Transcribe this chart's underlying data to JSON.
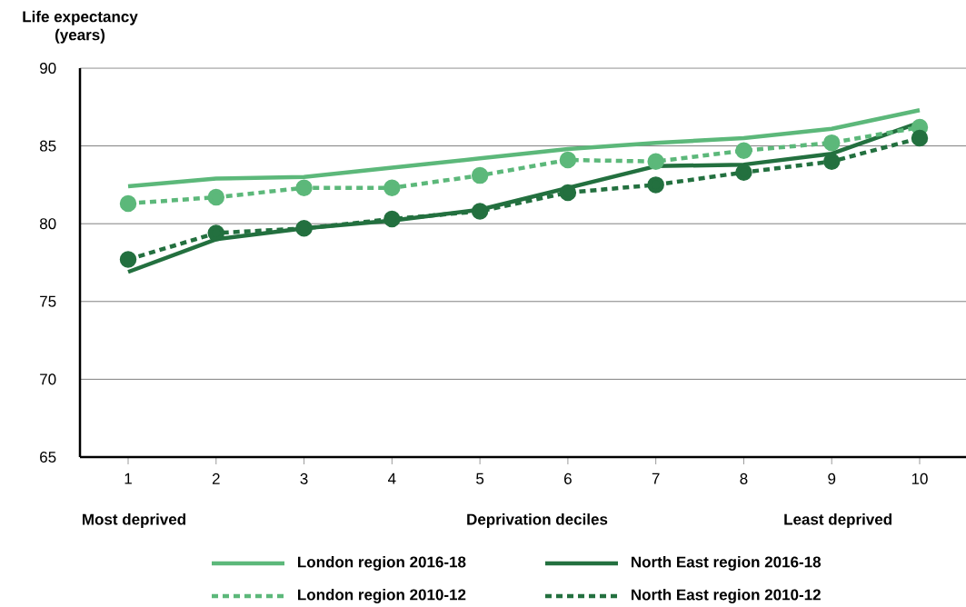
{
  "chart_data": {
    "type": "line",
    "ylabel": "Life expectancy (years)",
    "xlabel": "Deprivation deciles",
    "annotations": [
      "Most deprived",
      "Least deprived"
    ],
    "categories": [
      "1",
      "2",
      "3",
      "4",
      "5",
      "6",
      "7",
      "8",
      "9",
      "10"
    ],
    "ylim": [
      65,
      90
    ],
    "yticks": [
      65,
      70,
      75,
      80,
      85,
      90
    ],
    "grid": "y",
    "legend": "bottom",
    "series": [
      {
        "name": "London region 2016-18",
        "color": "#5cb87a",
        "line_style": "solid",
        "marker": "none",
        "values": [
          82.4,
          82.9,
          83.0,
          83.6,
          84.2,
          84.8,
          85.2,
          85.5,
          86.1,
          87.3
        ]
      },
      {
        "name": "North East region 2016-18",
        "color": "#23703f",
        "line_style": "solid",
        "marker": "none",
        "values": [
          76.9,
          79.0,
          79.7,
          80.2,
          80.9,
          82.3,
          83.7,
          83.8,
          84.5,
          86.5
        ]
      },
      {
        "name": "London region 2010-12",
        "color": "#5cb87a",
        "line_style": "dotted",
        "marker": "circle",
        "values": [
          81.3,
          81.7,
          82.3,
          82.3,
          83.1,
          84.1,
          84.0,
          84.7,
          85.2,
          86.2
        ]
      },
      {
        "name": "North East region 2010-12",
        "color": "#23703f",
        "line_style": "dotted",
        "marker": "circle",
        "values": [
          77.7,
          79.4,
          79.7,
          80.3,
          80.8,
          82.0,
          82.5,
          83.3,
          84.0,
          85.5
        ]
      }
    ]
  }
}
